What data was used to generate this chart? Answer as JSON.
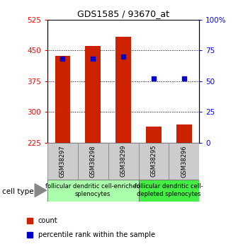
{
  "title": "GDS1585 / 93670_at",
  "samples": [
    "GSM38297",
    "GSM38298",
    "GSM38299",
    "GSM38295",
    "GSM38296"
  ],
  "count_values": [
    437,
    460,
    483,
    265,
    270
  ],
  "percentile_values": [
    68,
    68,
    70,
    52,
    52
  ],
  "ylim_left": [
    225,
    525
  ],
  "ylim_right": [
    0,
    100
  ],
  "yticks_left": [
    225,
    300,
    375,
    450,
    525
  ],
  "yticks_right": [
    0,
    25,
    50,
    75,
    100
  ],
  "ytick_labels_right": [
    "0",
    "25",
    "50",
    "75",
    "100%"
  ],
  "bar_color": "#cc2200",
  "dot_color": "#0000cc",
  "bar_width": 0.5,
  "group1_label": "follicular dendritic cell-enriched\nsplenocytes",
  "group2_label": "follicular dendritic cell-\ndepleted splenocytes",
  "group1_color": "#aaffaa",
  "group2_color": "#44ee44",
  "sample_box_color": "#cccccc",
  "legend_count_label": "count",
  "legend_pct_label": "percentile rank within the sample",
  "cell_type_label": "cell type",
  "baseline": 225,
  "grid_lines": [
    300,
    375,
    450
  ],
  "title_fontsize": 9,
  "tick_fontsize": 7.5,
  "sample_fontsize": 6,
  "group_fontsize": 6,
  "legend_fontsize": 7
}
